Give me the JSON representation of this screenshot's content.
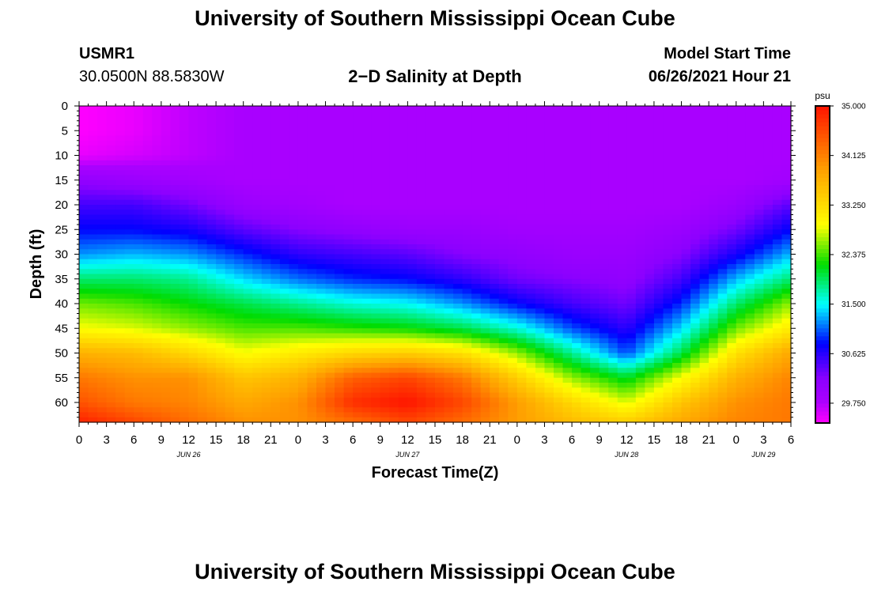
{
  "header": {
    "title": "University of Southern Mississippi Ocean Cube",
    "footer_title": "University of Southern Mississippi Ocean Cube",
    "station_id": "USMR1",
    "station_coords": "30.0500N  88.5830W",
    "subtitle": "2−D Salinity at Depth",
    "start_label": "Model Start Time",
    "start_value": "06/26/2021 Hour 21"
  },
  "chart_data": {
    "type": "heatmap",
    "title": "2−D Salinity at Depth",
    "xlabel": "Forecast Time(Z)",
    "ylabel": "Depth (ft)",
    "xlim": [
      0,
      78
    ],
    "ylim": [
      0,
      64
    ],
    "x_tick_labels": [
      "0",
      "3",
      "6",
      "9",
      "12",
      "15",
      "18",
      "21",
      "0",
      "3",
      "6",
      "9",
      "12",
      "15",
      "18",
      "21",
      "0",
      "3",
      "6",
      "9",
      "12",
      "15",
      "18",
      "21",
      "0",
      "3",
      "6"
    ],
    "y_ticks": [
      0,
      5,
      10,
      15,
      20,
      25,
      30,
      35,
      40,
      45,
      50,
      55,
      60
    ],
    "date_labels": [
      {
        "label": "JUN 26",
        "hour": 12
      },
      {
        "label": "JUN 27",
        "hour": 36
      },
      {
        "label": "JUN 28",
        "hour": 60
      },
      {
        "label": "JUN 29",
        "hour": 75
      }
    ],
    "colorbar": {
      "unit": "psu",
      "min": 29.4,
      "max": 35.0,
      "tick_values": [
        35.0,
        34.125,
        33.25,
        32.375,
        31.5,
        30.625,
        29.75
      ],
      "tick_labels": [
        "35.000",
        "34.125",
        "33.250",
        "32.375",
        "31.500",
        "30.625",
        "29.750"
      ]
    },
    "x_hours": [
      0,
      6,
      12,
      18,
      24,
      30,
      36,
      42,
      48,
      54,
      60,
      66,
      72,
      78
    ],
    "depths_ft": [
      0,
      5,
      10,
      15,
      20,
      25,
      30,
      35,
      40,
      45,
      50,
      55,
      60,
      64
    ],
    "salinity_psu": [
      [
        29.4,
        29.5,
        29.7,
        29.8,
        29.8,
        29.8,
        29.8,
        29.8,
        29.8,
        29.8,
        29.8,
        29.8,
        29.8,
        29.8
      ],
      [
        29.4,
        29.5,
        29.7,
        29.8,
        29.8,
        29.8,
        29.8,
        29.8,
        29.8,
        29.8,
        29.8,
        29.8,
        29.8,
        29.8
      ],
      [
        29.5,
        29.6,
        29.7,
        29.8,
        29.8,
        29.8,
        29.8,
        29.8,
        29.8,
        29.8,
        29.8,
        29.8,
        29.8,
        29.8
      ],
      [
        30.1,
        30.0,
        29.9,
        29.8,
        29.8,
        29.8,
        29.8,
        29.8,
        29.8,
        29.8,
        29.8,
        29.8,
        29.8,
        29.9
      ],
      [
        30.5,
        30.5,
        30.3,
        30.0,
        29.9,
        29.8,
        29.8,
        29.8,
        29.8,
        29.8,
        29.8,
        29.8,
        30.0,
        30.4
      ],
      [
        30.8,
        30.8,
        30.7,
        30.4,
        30.2,
        30.1,
        30.0,
        30.0,
        29.9,
        29.9,
        29.9,
        30.0,
        30.3,
        30.8
      ],
      [
        31.2,
        31.3,
        31.2,
        30.9,
        30.6,
        30.5,
        30.4,
        30.2,
        30.1,
        30.0,
        30.0,
        30.2,
        30.7,
        31.3
      ],
      [
        31.9,
        31.9,
        31.8,
        31.4,
        31.1,
        30.9,
        30.8,
        30.6,
        30.3,
        30.2,
        30.1,
        30.5,
        31.3,
        31.9
      ],
      [
        32.5,
        32.4,
        32.2,
        32.0,
        31.8,
        31.6,
        31.5,
        31.2,
        30.8,
        30.5,
        30.3,
        30.9,
        31.9,
        32.6
      ],
      [
        32.9,
        32.8,
        32.6,
        32.4,
        32.4,
        32.3,
        32.2,
        32.0,
        31.6,
        31.0,
        30.6,
        31.4,
        32.5,
        33.1
      ],
      [
        33.7,
        33.6,
        33.3,
        32.9,
        33.1,
        33.3,
        33.4,
        33.2,
        32.6,
        31.8,
        31.0,
        32.0,
        33.2,
        33.8
      ],
      [
        34.2,
        34.0,
        34.0,
        33.5,
        33.7,
        34.4,
        34.6,
        34.2,
        33.4,
        32.6,
        32.1,
        32.9,
        33.7,
        34.1
      ],
      [
        34.5,
        34.2,
        34.1,
        33.8,
        34.0,
        34.8,
        35.0,
        34.6,
        33.9,
        33.3,
        32.8,
        33.5,
        34.0,
        34.2
      ],
      [
        34.9,
        34.6,
        34.3,
        34.0,
        34.0,
        34.3,
        34.6,
        34.3,
        33.9,
        33.6,
        33.4,
        33.8,
        34.1,
        34.2
      ]
    ]
  }
}
